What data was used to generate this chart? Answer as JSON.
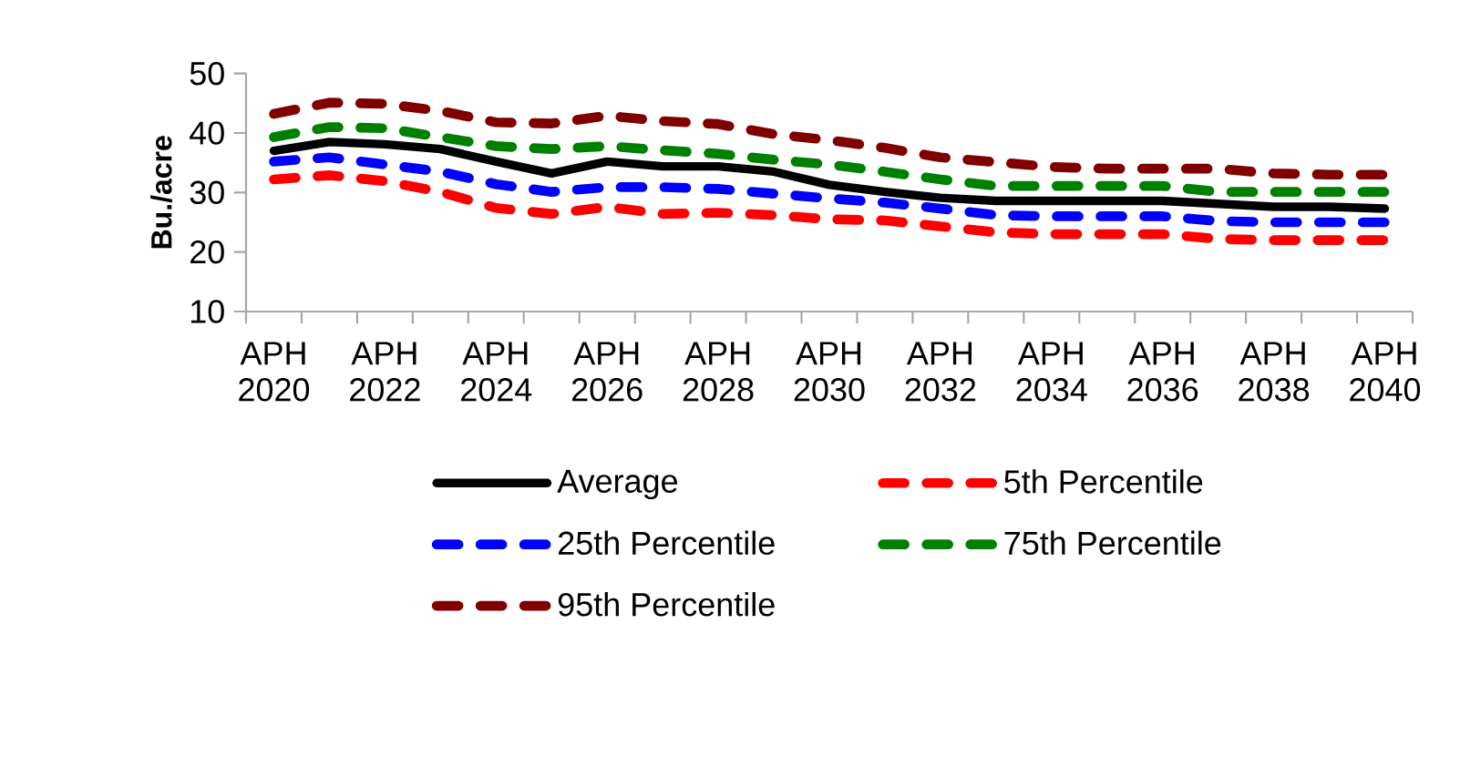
{
  "chart_data": {
    "type": "line",
    "ylabel": "Bu./acre",
    "categories": [
      "APH 2020",
      null,
      "APH 2022",
      null,
      "APH 2024",
      null,
      "APH 2026",
      null,
      "APH 2028",
      null,
      "APH 2030",
      null,
      "APH 2032",
      null,
      "APH 2034",
      null,
      "APH 2036",
      null,
      "APH 2038",
      null,
      "APH 2040"
    ],
    "series": [
      {
        "name": "Average",
        "color": "#000000",
        "line_style": "solid",
        "values": [
          37.0,
          38.5,
          38.1,
          37.3,
          35.2,
          33.2,
          35.2,
          34.4,
          34.4,
          33.5,
          31.3,
          30.1,
          29.1,
          28.6,
          28.6,
          28.6,
          28.6,
          28.1,
          27.6,
          27.6,
          27.3
        ]
      },
      {
        "name": "5th Percentile",
        "color": "#ff0000",
        "line_style": "dashed",
        "values": [
          32.2,
          32.9,
          31.9,
          30.1,
          27.4,
          26.4,
          27.6,
          26.4,
          26.6,
          26.2,
          25.5,
          25.3,
          24.3,
          23.3,
          23.0,
          23.0,
          23.0,
          22.2,
          22.0,
          22.0,
          22.0
        ]
      },
      {
        "name": "25th Percentile",
        "color": "#0000ff",
        "line_style": "dashed",
        "values": [
          35.2,
          35.9,
          34.7,
          33.5,
          31.4,
          30.1,
          30.9,
          30.9,
          30.6,
          29.8,
          29.0,
          28.3,
          27.3,
          26.2,
          26.0,
          26.0,
          26.0,
          25.2,
          25.0,
          25.0,
          25.0
        ]
      },
      {
        "name": "75th Percentile",
        "color": "#008000",
        "line_style": "dashed",
        "values": [
          39.3,
          41.0,
          40.8,
          39.3,
          37.8,
          37.3,
          37.8,
          37.1,
          36.5,
          35.5,
          34.7,
          33.5,
          32.2,
          31.1,
          31.1,
          31.1,
          31.1,
          30.1,
          30.1,
          30.1,
          30.1
        ]
      },
      {
        "name": "95th Percentile",
        "color": "#800000",
        "line_style": "dashed",
        "values": [
          43.2,
          45.1,
          44.9,
          43.7,
          41.8,
          41.6,
          42.9,
          42.0,
          41.5,
          39.8,
          38.8,
          37.5,
          35.9,
          35.1,
          34.3,
          34.0,
          34.0,
          34.0,
          33.2,
          33.0,
          33.0
        ]
      }
    ],
    "ylim": [
      10,
      50
    ],
    "yticks": [
      10,
      20,
      30,
      40,
      50
    ],
    "grid": false,
    "legend": "bottom",
    "marker": "none"
  }
}
